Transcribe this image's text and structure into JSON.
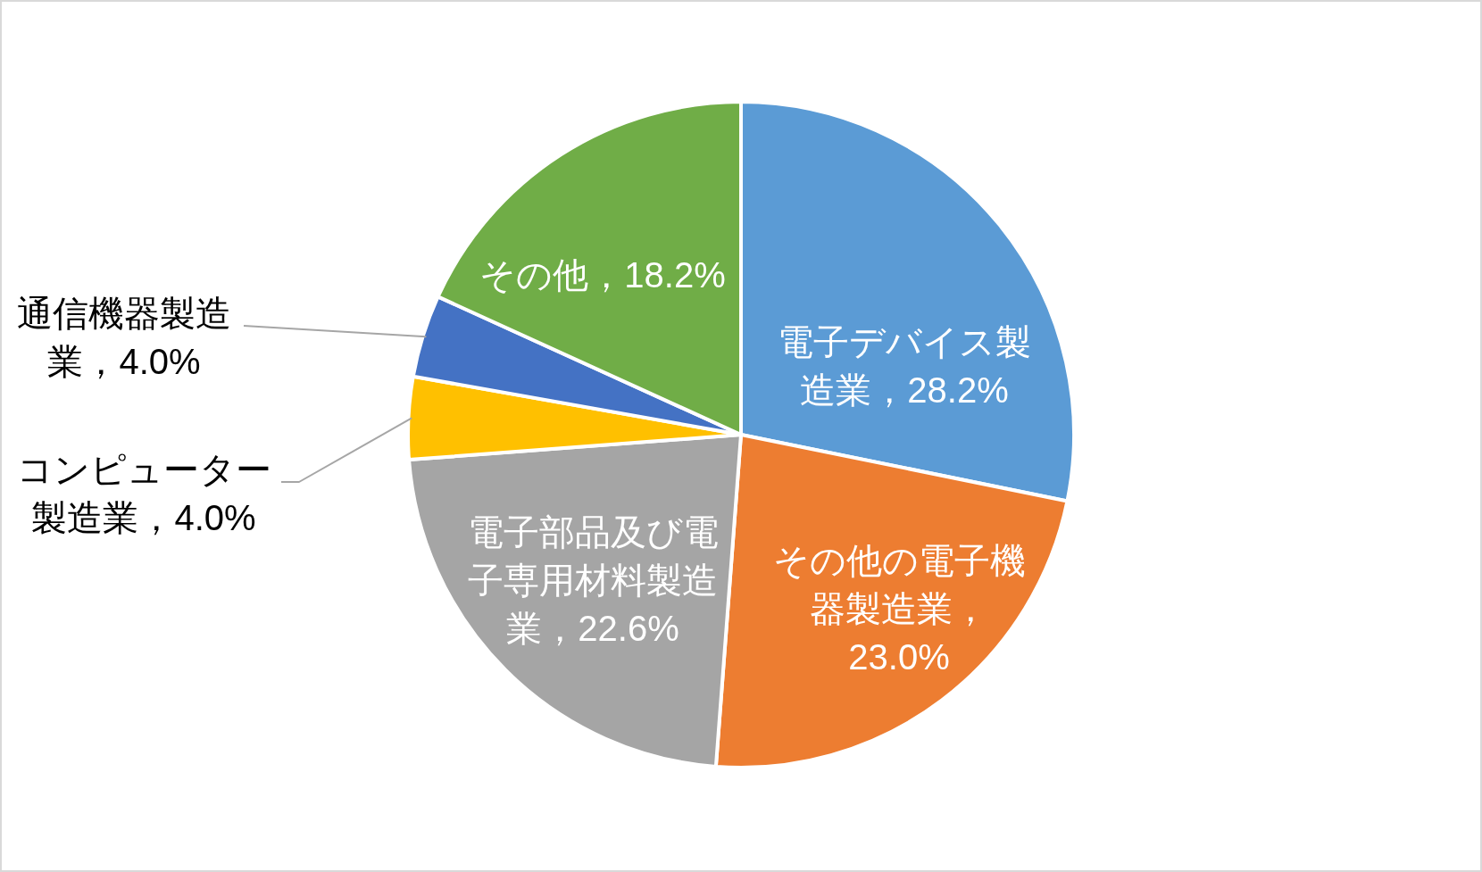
{
  "chart_data": {
    "type": "pie",
    "categories": [
      "電子デバイス製造業",
      "その他の電子機器製造業",
      "電子部品及び電子専用材料製造業",
      "コンピューター製造業",
      "通信機器製造業",
      "その他"
    ],
    "values": [
      28.2,
      23.0,
      22.6,
      4.0,
      4.0,
      18.2
    ],
    "colors": [
      "#5b9bd5",
      "#ed7d31",
      "#a5a5a5",
      "#ffc000",
      "#4472c4",
      "#70ad47"
    ],
    "value_labels": [
      "，28.2%",
      "，23.0%",
      "，22.6%",
      "，4.0%",
      "，4.0%",
      "，18.2%"
    ]
  }
}
